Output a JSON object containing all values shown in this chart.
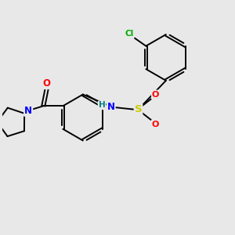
{
  "background_color": "#e8e8e8",
  "bond_color": "#000000",
  "atom_colors": {
    "Cl": "#00aa00",
    "O": "#ff0000",
    "N": "#0000ff",
    "S": "#cccc00",
    "H": "#008080",
    "C": "#000000"
  },
  "figsize": [
    3.0,
    3.0
  ],
  "dpi": 100
}
